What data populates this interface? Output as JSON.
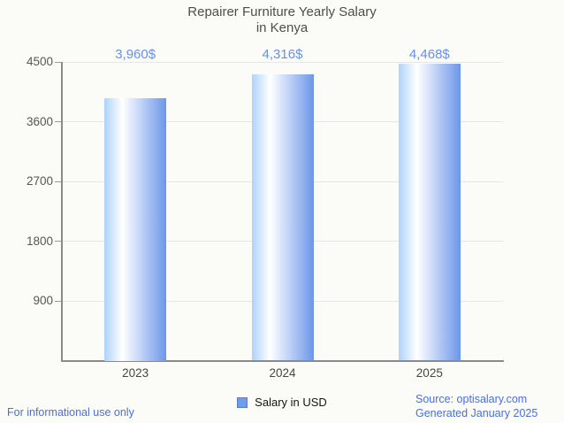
{
  "title": {
    "line1": "Repairer Furniture Yearly Salary",
    "line2": "in Kenya"
  },
  "chart_data": {
    "type": "bar",
    "title": "Repairer Furniture Yearly Salary in Kenya",
    "categories": [
      "2023",
      "2024",
      "2025"
    ],
    "values": [
      3960,
      4316,
      4468
    ],
    "value_labels": [
      "3,960$",
      "4,316$",
      "4,468$"
    ],
    "xlabel": "",
    "ylabel": "",
    "ylim": [
      0,
      4500
    ],
    "yticks": [
      900,
      1800,
      2700,
      3600,
      4500
    ],
    "grid": true,
    "legend_position": "bottom-center",
    "series_name": "Salary in USD",
    "colors": {
      "bar_gradient_left": "#aed3fb",
      "bar_gradient_mid": "#ffffff",
      "bar_gradient_right": "#6c96e9",
      "value_label": "#6591e8",
      "gridline": "#e7e7e7",
      "axis": "#8a8a8a",
      "tick_label": "#565656"
    }
  },
  "legend": {
    "label": "Salary in USD",
    "marker_color": "#6e9ceb"
  },
  "footer": {
    "disclaimer": "For informational use only",
    "source": "Source: optisalary.com",
    "generated": "Generated January 2025",
    "text_color": "#4b70d6"
  }
}
